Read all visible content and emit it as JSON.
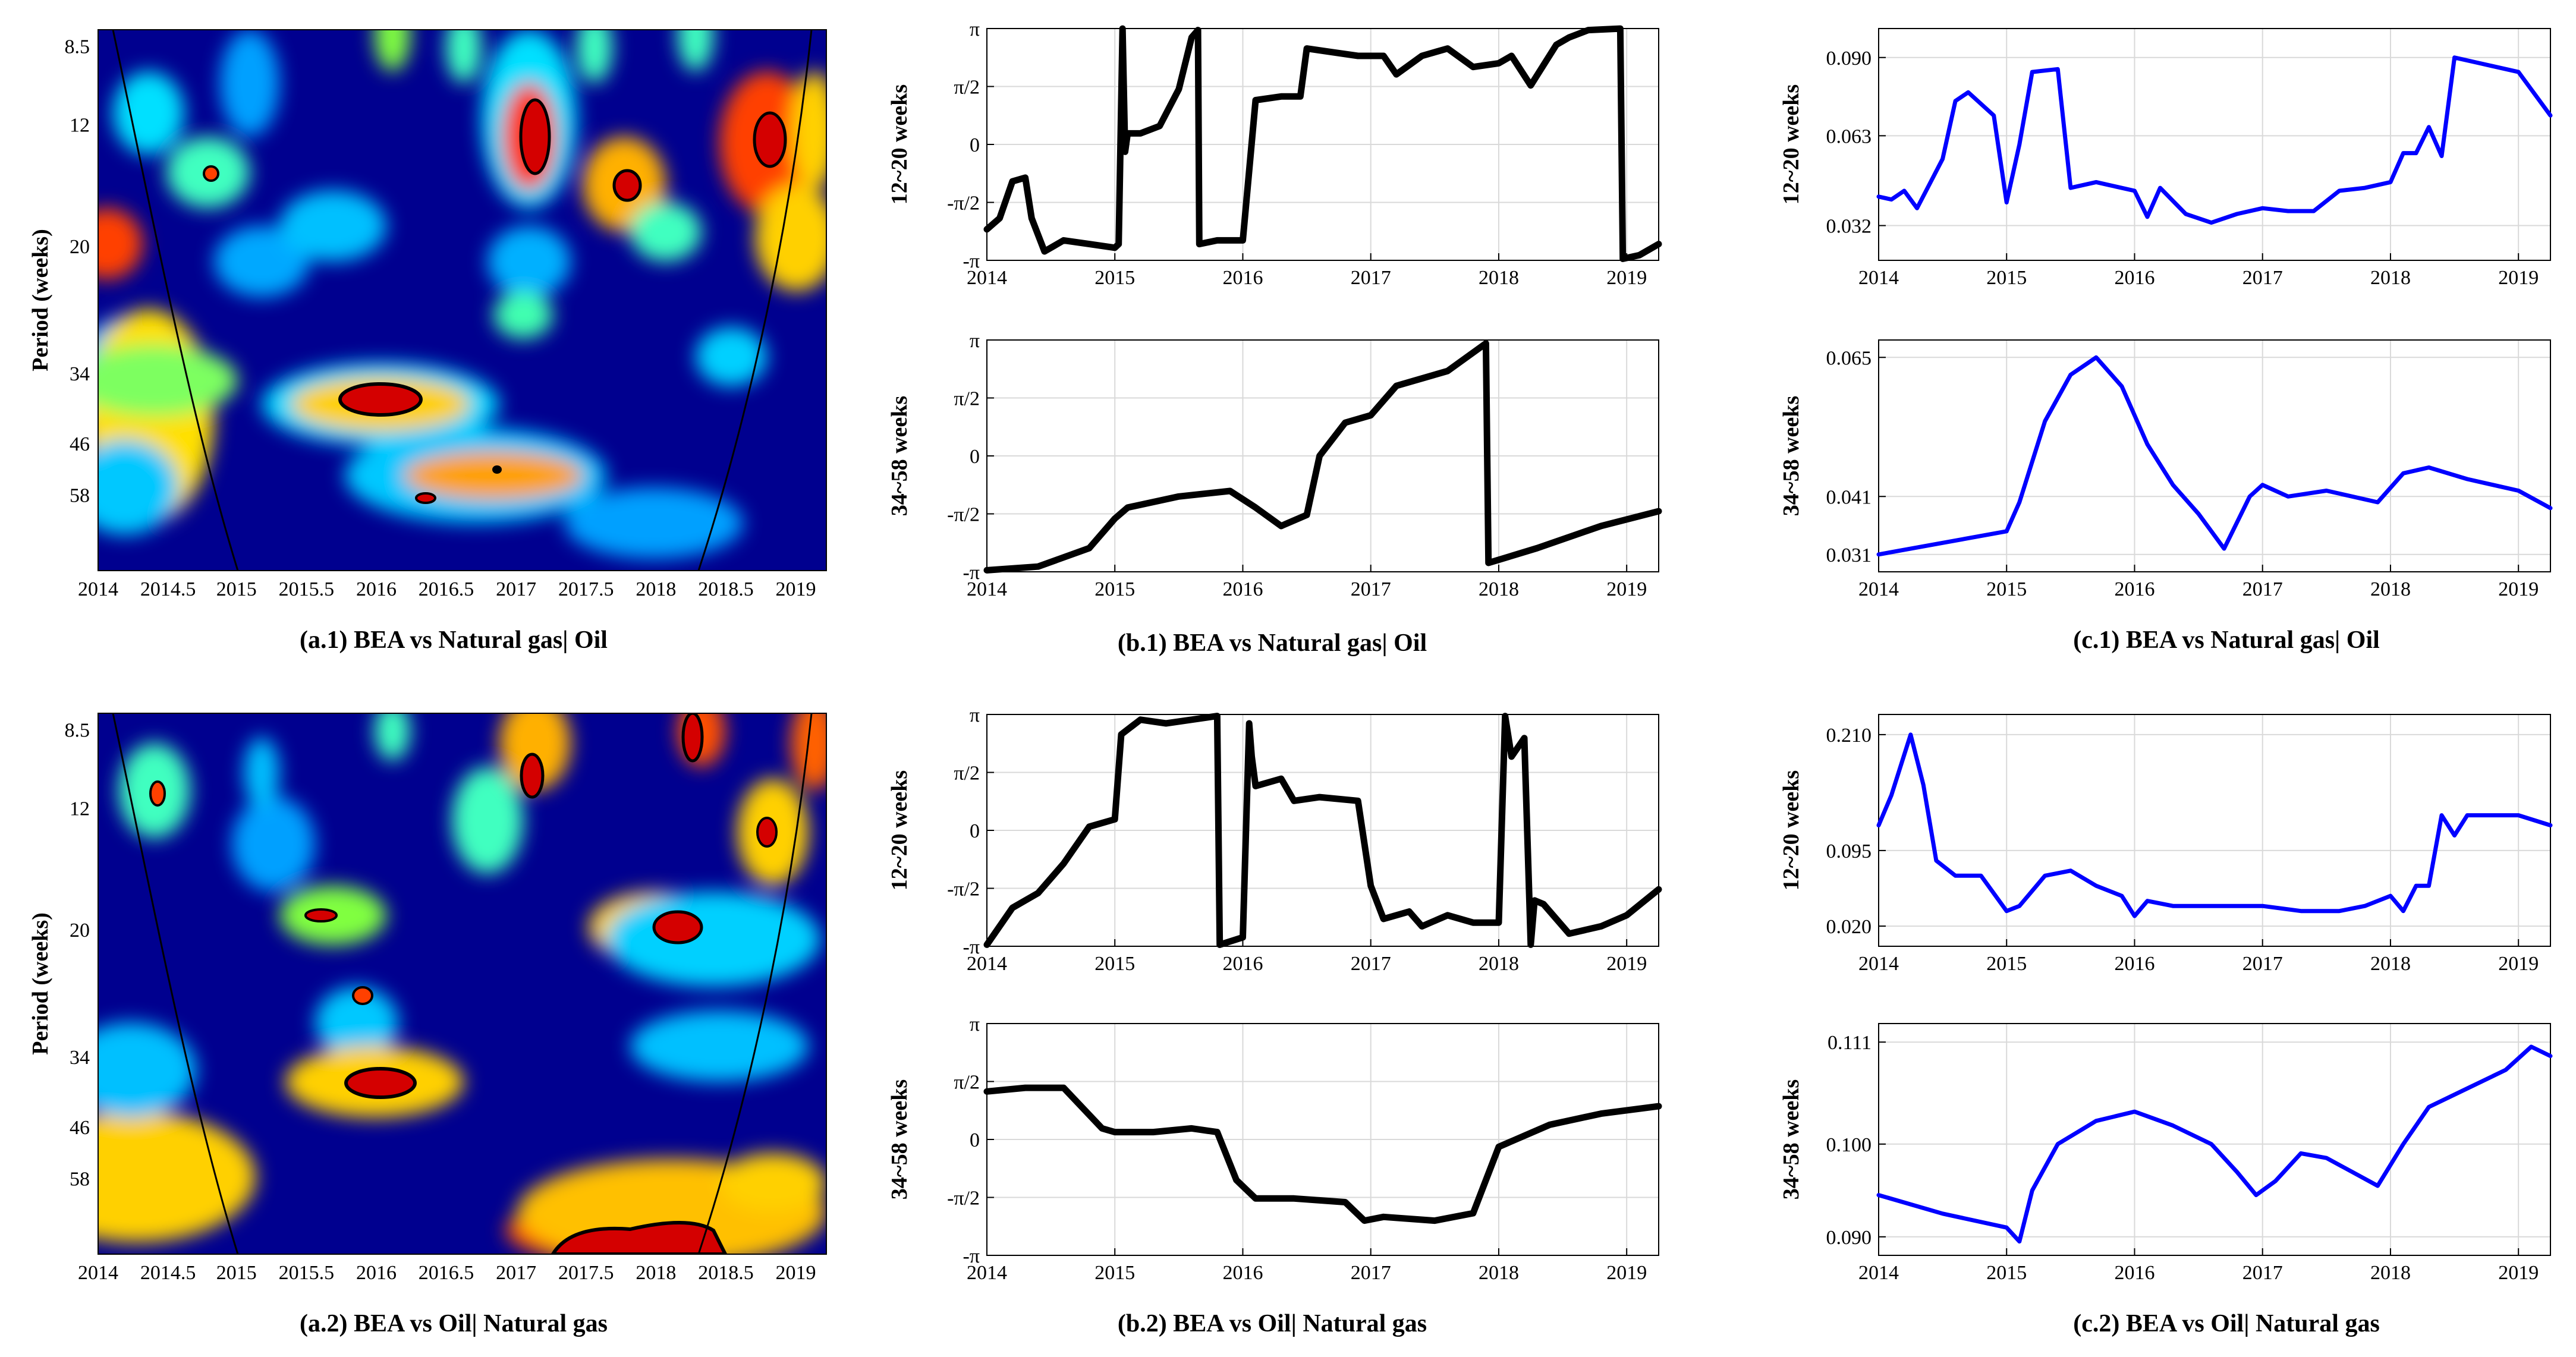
{
  "figure": {
    "wavelet_panels": [
      {
        "caption": "(a.1) BEA vs Natural gas| Oil",
        "ylabel": "Period (weeks)",
        "xticks": [
          "2014",
          "2014.5",
          "2015",
          "2015.5",
          "2016",
          "2016.5",
          "2017",
          "2017.5",
          "2018",
          "2018.5",
          "2019"
        ],
        "yticks": [
          "8.5",
          "12",
          "20",
          "34",
          "46",
          "58"
        ]
      },
      {
        "caption": "(a.2) BEA vs Oil| Natural gas",
        "ylabel": "Period (weeks)",
        "xticks": [
          "2014",
          "2014.5",
          "2015",
          "2015.5",
          "2016",
          "2016.5",
          "2017",
          "2017.5",
          "2018",
          "2018.5",
          "2019"
        ],
        "yticks": [
          "8.5",
          "12",
          "20",
          "34",
          "46",
          "58"
        ]
      }
    ],
    "captions": {
      "b1": "(b.1) BEA vs Natural gas| Oil",
      "c1": "(c.1) BEA vs Natural gas| Oil",
      "b2": "(b.2) BEA vs Oil| Natural gas",
      "c2": "(c.2) BEA vs Oil| Natural gas"
    },
    "colors": {
      "phase_line": "#000000",
      "coherence_line": "#0000ff",
      "grid": "#d9d9d9"
    }
  },
  "chart_data": [
    {
      "id": "b1_top",
      "type": "line",
      "title": "",
      "ylabel": "12~20 weeks",
      "xlim": [
        2014,
        2019.25
      ],
      "ylim": [
        -3.1416,
        3.1416
      ],
      "yticks": [
        -3.1416,
        -1.5708,
        0,
        1.5708,
        3.1416
      ],
      "yticklabels": [
        "-π",
        "-π/2",
        "0",
        "π/2",
        "π"
      ],
      "xticks": [
        2014,
        2015,
        2016,
        2017,
        2018,
        2019
      ],
      "xticklabels": [
        "2014",
        "2015",
        "2016",
        "2017",
        "2018",
        "2019"
      ],
      "color": "#000000",
      "x": [
        2014.0,
        2014.1,
        2014.2,
        2014.3,
        2014.35,
        2014.45,
        2014.6,
        2014.8,
        2015.0,
        2015.03,
        2015.06,
        2015.08,
        2015.1,
        2015.2,
        2015.35,
        2015.5,
        2015.6,
        2015.65,
        2015.66,
        2015.8,
        2016.0,
        2016.1,
        2016.3,
        2016.45,
        2016.5,
        2016.7,
        2016.9,
        2017.1,
        2017.2,
        2017.4,
        2017.6,
        2017.8,
        2018.0,
        2018.1,
        2018.25,
        2018.45,
        2018.55,
        2018.7,
        2018.95,
        2018.97,
        2019.1,
        2019.25
      ],
      "y": [
        -2.3,
        -2.0,
        -1.0,
        -0.9,
        -2.0,
        -2.9,
        -2.6,
        -2.7,
        -2.8,
        -2.7,
        3.14,
        -0.2,
        0.3,
        0.3,
        0.5,
        1.5,
        2.9,
        3.1,
        -2.7,
        -2.6,
        -2.6,
        1.2,
        1.3,
        1.3,
        2.6,
        2.5,
        2.4,
        2.4,
        1.9,
        2.4,
        2.6,
        2.1,
        2.2,
        2.4,
        1.6,
        2.7,
        2.9,
        3.1,
        3.14,
        -3.1,
        -3.0,
        -2.7
      ]
    },
    {
      "id": "b1_bottom",
      "type": "line",
      "title": "",
      "ylabel": "34~58 weeks",
      "xlim": [
        2014,
        2019.25
      ],
      "ylim": [
        -3.1416,
        3.1416
      ],
      "yticks": [
        -3.1416,
        -1.5708,
        0,
        1.5708,
        3.1416
      ],
      "yticklabels": [
        "-π",
        "-π/2",
        "0",
        "π/2",
        "π"
      ],
      "xticks": [
        2014,
        2015,
        2016,
        2017,
        2018,
        2019
      ],
      "xticklabels": [
        "2014",
        "2015",
        "2016",
        "2017",
        "2018",
        "2019"
      ],
      "color": "#000000",
      "x": [
        2014.0,
        2014.4,
        2014.8,
        2015.0,
        2015.1,
        2015.5,
        2015.9,
        2016.1,
        2016.3,
        2016.5,
        2016.6,
        2016.8,
        2017.0,
        2017.2,
        2017.6,
        2017.9,
        2017.92,
        2018.3,
        2018.8,
        2019.25
      ],
      "y": [
        -3.1,
        -3.0,
        -2.5,
        -1.7,
        -1.4,
        -1.1,
        -0.95,
        -1.4,
        -1.9,
        -1.6,
        0.0,
        0.9,
        1.1,
        1.9,
        2.3,
        3.05,
        -2.9,
        -2.5,
        -1.9,
        -1.5
      ]
    },
    {
      "id": "c1_top",
      "type": "line",
      "title": "",
      "ylabel": "12~20 weeks",
      "xlim": [
        2014,
        2019.25
      ],
      "ylim": [
        0.02,
        0.1
      ],
      "yticks": [
        0.032,
        0.063,
        0.09
      ],
      "yticklabels": [
        "0.032",
        "0.063",
        "0.090"
      ],
      "xticks": [
        2014,
        2015,
        2016,
        2017,
        2018,
        2019
      ],
      "xticklabels": [
        "2014",
        "2015",
        "2016",
        "2017",
        "2018",
        "2019"
      ],
      "color": "#0000ff",
      "x": [
        2014.0,
        2014.1,
        2014.2,
        2014.3,
        2014.5,
        2014.6,
        2014.7,
        2014.9,
        2015.0,
        2015.1,
        2015.2,
        2015.4,
        2015.5,
        2015.7,
        2015.8,
        2016.0,
        2016.1,
        2016.2,
        2016.4,
        2016.6,
        2016.8,
        2017.0,
        2017.2,
        2017.4,
        2017.6,
        2017.8,
        2018.0,
        2018.1,
        2018.2,
        2018.3,
        2018.4,
        2018.5,
        2018.7,
        2019.0,
        2019.25
      ],
      "y": [
        0.042,
        0.041,
        0.044,
        0.038,
        0.055,
        0.075,
        0.078,
        0.07,
        0.04,
        0.06,
        0.085,
        0.086,
        0.045,
        0.047,
        0.046,
        0.044,
        0.035,
        0.045,
        0.036,
        0.033,
        0.036,
        0.038,
        0.037,
        0.037,
        0.044,
        0.045,
        0.047,
        0.057,
        0.057,
        0.066,
        0.056,
        0.09,
        0.088,
        0.085,
        0.07
      ]
    },
    {
      "id": "c1_bottom",
      "type": "line",
      "title": "",
      "ylabel": "34~58 weeks",
      "xlim": [
        2014,
        2019.25
      ],
      "ylim": [
        0.028,
        0.068
      ],
      "yticks": [
        0.031,
        0.041,
        0.065
      ],
      "yticklabels": [
        "0.031",
        "0.041",
        "0.065"
      ],
      "xticks": [
        2014,
        2015,
        2016,
        2017,
        2018,
        2019
      ],
      "xticklabels": [
        "2014",
        "2015",
        "2016",
        "2017",
        "2018",
        "2019"
      ],
      "color": "#0000ff",
      "x": [
        2014.0,
        2014.5,
        2015.0,
        2015.1,
        2015.3,
        2015.5,
        2015.7,
        2015.9,
        2016.1,
        2016.3,
        2016.5,
        2016.7,
        2016.9,
        2017.0,
        2017.2,
        2017.5,
        2017.9,
        2018.1,
        2018.3,
        2018.6,
        2019.0,
        2019.25
      ],
      "y": [
        0.031,
        0.033,
        0.035,
        0.04,
        0.054,
        0.062,
        0.065,
        0.06,
        0.05,
        0.043,
        0.038,
        0.032,
        0.041,
        0.043,
        0.041,
        0.042,
        0.04,
        0.045,
        0.046,
        0.044,
        0.042,
        0.039
      ]
    },
    {
      "id": "b2_top",
      "type": "line",
      "title": "",
      "ylabel": "12~20 weeks",
      "xlim": [
        2014,
        2019.25
      ],
      "ylim": [
        -3.1416,
        3.1416
      ],
      "yticks": [
        -3.1416,
        -1.5708,
        0,
        1.5708,
        3.1416
      ],
      "yticklabels": [
        "-π",
        "-π/2",
        "0",
        "π/2",
        "π"
      ],
      "xticks": [
        2014,
        2015,
        2016,
        2017,
        2018,
        2019
      ],
      "xticklabels": [
        "2014",
        "2015",
        "2016",
        "2017",
        "2018",
        "2019"
      ],
      "color": "#000000",
      "x": [
        2014.0,
        2014.2,
        2014.4,
        2014.6,
        2014.8,
        2015.0,
        2015.05,
        2015.2,
        2015.4,
        2015.6,
        2015.8,
        2015.82,
        2016.0,
        2016.05,
        2016.07,
        2016.1,
        2016.3,
        2016.4,
        2016.6,
        2016.9,
        2017.0,
        2017.1,
        2017.3,
        2017.4,
        2017.6,
        2017.8,
        2018.0,
        2018.05,
        2018.1,
        2018.2,
        2018.25,
        2018.28,
        2018.35,
        2018.55,
        2018.8,
        2019.0,
        2019.25
      ],
      "y": [
        -3.1,
        -2.1,
        -1.7,
        -0.9,
        0.1,
        0.3,
        2.6,
        3.0,
        2.9,
        3.0,
        3.1,
        -3.1,
        -2.9,
        2.9,
        2.0,
        1.2,
        1.4,
        0.8,
        0.9,
        0.8,
        -1.5,
        -2.4,
        -2.2,
        -2.6,
        -2.3,
        -2.5,
        -2.5,
        3.1,
        2.0,
        2.5,
        -3.1,
        -1.9,
        -2.0,
        -2.8,
        -2.6,
        -2.3,
        -1.6
      ]
    },
    {
      "id": "b2_bottom",
      "type": "line",
      "title": "",
      "ylabel": "34~58 weeks",
      "xlim": [
        2014,
        2019.25
      ],
      "ylim": [
        -3.1416,
        3.1416
      ],
      "yticks": [
        -3.1416,
        -1.5708,
        0,
        1.5708,
        3.1416
      ],
      "yticklabels": [
        "-π",
        "-π/2",
        "0",
        "π/2",
        "π"
      ],
      "xticks": [
        2014,
        2015,
        2016,
        2017,
        2018,
        2019
      ],
      "xticklabels": [
        "2014",
        "2015",
        "2016",
        "2017",
        "2018",
        "2019"
      ],
      "color": "#000000",
      "x": [
        2014.0,
        2014.3,
        2014.6,
        2014.9,
        2015.0,
        2015.3,
        2015.6,
        2015.8,
        2015.95,
        2016.1,
        2016.4,
        2016.8,
        2016.95,
        2017.1,
        2017.5,
        2017.8,
        2018.0,
        2018.4,
        2018.8,
        2019.25
      ],
      "y": [
        1.3,
        1.4,
        1.4,
        0.3,
        0.2,
        0.2,
        0.3,
        0.2,
        -1.1,
        -1.6,
        -1.6,
        -1.7,
        -2.2,
        -2.1,
        -2.2,
        -2.0,
        -0.2,
        0.4,
        0.7,
        0.9
      ]
    },
    {
      "id": "c2_top",
      "type": "line",
      "title": "",
      "ylabel": "12~20 weeks",
      "xlim": [
        2014,
        2019.25
      ],
      "ylim": [
        0.0,
        0.23
      ],
      "yticks": [
        0.02,
        0.095,
        0.21
      ],
      "yticklabels": [
        "0.020",
        "0.095",
        "0.210"
      ],
      "xticks": [
        2014,
        2015,
        2016,
        2017,
        2018,
        2019
      ],
      "xticklabels": [
        "2014",
        "2015",
        "2016",
        "2017",
        "2018",
        "2019"
      ],
      "color": "#0000ff",
      "x": [
        2014.0,
        2014.1,
        2014.25,
        2014.35,
        2014.45,
        2014.6,
        2014.8,
        2015.0,
        2015.1,
        2015.3,
        2015.5,
        2015.7,
        2015.9,
        2016.0,
        2016.1,
        2016.3,
        2016.6,
        2017.0,
        2017.3,
        2017.6,
        2017.8,
        2018.0,
        2018.1,
        2018.2,
        2018.3,
        2018.4,
        2018.5,
        2018.6,
        2018.8,
        2019.0,
        2019.25
      ],
      "y": [
        0.12,
        0.15,
        0.21,
        0.16,
        0.085,
        0.07,
        0.07,
        0.035,
        0.04,
        0.07,
        0.075,
        0.06,
        0.05,
        0.03,
        0.045,
        0.04,
        0.04,
        0.04,
        0.035,
        0.035,
        0.04,
        0.05,
        0.035,
        0.06,
        0.06,
        0.13,
        0.11,
        0.13,
        0.13,
        0.13,
        0.12
      ]
    },
    {
      "id": "c2_bottom",
      "type": "line",
      "title": "",
      "ylabel": "34~58 weeks",
      "xlim": [
        2014,
        2019.25
      ],
      "ylim": [
        0.088,
        0.113
      ],
      "yticks": [
        0.09,
        0.1,
        0.111
      ],
      "yticklabels": [
        "0.090",
        "0.100",
        "0.111"
      ],
      "xticks": [
        2014,
        2015,
        2016,
        2017,
        2018,
        2019
      ],
      "xticklabels": [
        "2014",
        "2015",
        "2016",
        "2017",
        "2018",
        "2019"
      ],
      "color": "#0000ff",
      "x": [
        2014.0,
        2014.5,
        2015.0,
        2015.1,
        2015.2,
        2015.4,
        2015.7,
        2016.0,
        2016.3,
        2016.6,
        2016.8,
        2016.95,
        2017.1,
        2017.3,
        2017.5,
        2017.7,
        2017.9,
        2018.1,
        2018.3,
        2018.6,
        2018.9,
        2019.1,
        2019.25
      ],
      "y": [
        0.0945,
        0.0925,
        0.091,
        0.0895,
        0.095,
        0.1,
        0.1025,
        0.1035,
        0.102,
        0.1,
        0.097,
        0.0945,
        0.096,
        0.099,
        0.0985,
        0.097,
        0.0955,
        0.1,
        0.104,
        0.106,
        0.108,
        0.1105,
        0.1095
      ]
    }
  ]
}
